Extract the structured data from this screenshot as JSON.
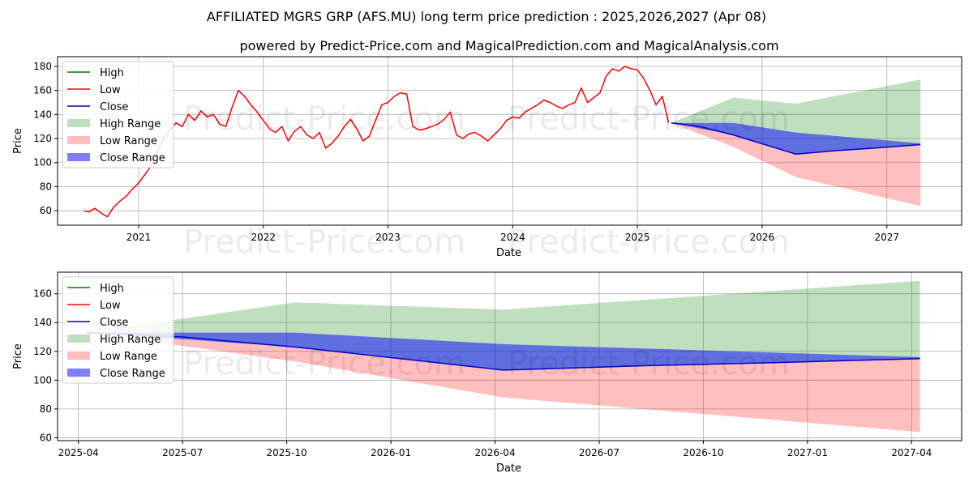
{
  "chart_data": [
    {
      "type": "line",
      "title": "AFFILIATED MGRS GRP (AFS.MU) long term price prediction : 2025,2026,2027 (Apr 08)",
      "subtitle": "powered by Predict-Price.com and MagicalPrediction.com and MagicalAnalysis.com",
      "xlabel": "Date",
      "ylabel": "Price",
      "xlim": [
        2020.35,
        2027.6
      ],
      "ylim": [
        48,
        188
      ],
      "x_ticks": [
        2021,
        2022,
        2023,
        2024,
        2025,
        2026,
        2027
      ],
      "x_tick_labels": [
        "2021",
        "2022",
        "2023",
        "2024",
        "2025",
        "2026",
        "2027"
      ],
      "y_ticks": [
        60,
        80,
        100,
        120,
        140,
        160,
        180
      ],
      "y_tick_labels": [
        "60",
        "80",
        "100",
        "120",
        "140",
        "160",
        "180"
      ],
      "grid": true,
      "legend_position": "top-left",
      "watermark": "Predict-Price.com",
      "series": [
        {
          "name": "Low",
          "color": "#ff0000",
          "x": [
            2020.56,
            2020.6,
            2020.65,
            2020.7,
            2020.75,
            2020.8,
            2020.85,
            2020.9,
            2020.95,
            2021.0,
            2021.05,
            2021.1,
            2021.15,
            2021.2,
            2021.25,
            2021.3,
            2021.35,
            2021.4,
            2021.45,
            2021.5,
            2021.55,
            2021.6,
            2021.65,
            2021.7,
            2021.75,
            2021.8,
            2021.85,
            2021.9,
            2021.95,
            2022.0,
            2022.05,
            2022.1,
            2022.15,
            2022.2,
            2022.25,
            2022.3,
            2022.35,
            2022.4,
            2022.45,
            2022.5,
            2022.55,
            2022.6,
            2022.65,
            2022.7,
            2022.75,
            2022.8,
            2022.85,
            2022.9,
            2022.95,
            2023.0,
            2023.05,
            2023.1,
            2023.15,
            2023.2,
            2023.25,
            2023.3,
            2023.35,
            2023.4,
            2023.45,
            2023.5,
            2023.55,
            2023.6,
            2023.65,
            2023.7,
            2023.75,
            2023.8,
            2023.85,
            2023.9,
            2023.95,
            2024.0,
            2024.05,
            2024.1,
            2024.15,
            2024.2,
            2024.25,
            2024.3,
            2024.35,
            2024.4,
            2024.45,
            2024.5,
            2024.55,
            2024.6,
            2024.65,
            2024.7,
            2024.75,
            2024.8,
            2024.85,
            2024.9,
            2024.95,
            2025.0,
            2025.05,
            2025.1,
            2025.15,
            2025.2,
            2025.25
          ],
          "values": [
            60,
            59,
            62,
            58,
            55,
            63,
            68,
            72,
            78,
            83,
            90,
            97,
            110,
            120,
            127,
            133,
            130,
            140,
            135,
            143,
            138,
            140,
            132,
            130,
            146,
            160,
            155,
            148,
            142,
            135,
            128,
            125,
            130,
            118,
            126,
            130,
            123,
            120,
            125,
            112,
            116,
            122,
            130,
            136,
            128,
            118,
            122,
            135,
            148,
            150,
            155,
            158,
            157,
            130,
            127,
            128,
            130,
            132,
            136,
            142,
            123,
            120,
            124,
            125,
            122,
            118,
            123,
            128,
            135,
            138,
            137,
            142,
            145,
            148,
            152,
            150,
            147,
            145,
            148,
            150,
            162,
            150,
            154,
            158,
            172,
            178,
            176,
            180,
            178,
            177,
            170,
            160,
            148,
            155,
            133
          ]
        },
        {
          "name": "High",
          "color": "#008000",
          "x": [],
          "values": []
        },
        {
          "name": "Close",
          "color": "#0000cc",
          "x": [
            2025.27,
            2025.5,
            2025.77,
            2026.27,
            2026.6,
            2026.9,
            2027.27
          ],
          "values": [
            133,
            130,
            123,
            107,
            110,
            112,
            115
          ]
        }
      ],
      "bands": [
        {
          "name": "High Range",
          "color": "#008000",
          "alpha": 0.25,
          "x": [
            2025.27,
            2025.77,
            2026.27,
            2027.27
          ],
          "upper": [
            133,
            154,
            149,
            169
          ],
          "lower": [
            133,
            123,
            107,
            115
          ]
        },
        {
          "name": "Low Range",
          "color": "#ff0000",
          "alpha": 0.25,
          "x": [
            2025.27,
            2025.77,
            2026.27,
            2027.27
          ],
          "upper": [
            133,
            123,
            107,
            115
          ],
          "lower": [
            133,
            113,
            88,
            64
          ]
        },
        {
          "name": "Close Range",
          "color": "#0000ff",
          "alpha": 0.5,
          "x": [
            2025.27,
            2025.77,
            2026.27,
            2027.27
          ],
          "upper": [
            133,
            133,
            125,
            116
          ],
          "lower": [
            133,
            123,
            107,
            115
          ]
        }
      ],
      "legend": [
        "High",
        "Low",
        "Close",
        "High Range",
        "Low Range",
        "Close Range"
      ]
    },
    {
      "type": "line",
      "title": "",
      "xlabel": "Date",
      "ylabel": "Price",
      "xlim": [
        2025.2,
        2027.37
      ],
      "ylim": [
        58,
        175
      ],
      "x_ticks": [
        2025.25,
        2025.5,
        2025.75,
        2026.0,
        2026.25,
        2026.5,
        2026.75,
        2027.0,
        2027.25
      ],
      "x_tick_labels": [
        "2025-04",
        "2025-07",
        "2025-10",
        "2026-01",
        "2026-04",
        "2026-07",
        "2026-10",
        "2027-01",
        "2027-04"
      ],
      "y_ticks": [
        60,
        80,
        100,
        120,
        140,
        160
      ],
      "y_tick_labels": [
        "60",
        "80",
        "100",
        "120",
        "140",
        "160"
      ],
      "grid": true,
      "legend_position": "top-left",
      "watermark": "Predict-Price.com",
      "series": [
        {
          "name": "High",
          "color": "#008000",
          "x": [],
          "values": []
        },
        {
          "name": "Low",
          "color": "#ff0000",
          "x": [],
          "values": []
        },
        {
          "name": "Close",
          "color": "#0000cc",
          "x": [
            2025.27,
            2025.5,
            2025.77,
            2026.27,
            2026.6,
            2026.9,
            2027.27
          ],
          "values": [
            133,
            130,
            123,
            107,
            110,
            112,
            115
          ]
        }
      ],
      "bands": [
        {
          "name": "High Range",
          "color": "#008000",
          "alpha": 0.25,
          "x": [
            2025.27,
            2025.77,
            2026.27,
            2027.27
          ],
          "upper": [
            133,
            154,
            149,
            169
          ],
          "lower": [
            133,
            123,
            107,
            115
          ]
        },
        {
          "name": "Low Range",
          "color": "#ff0000",
          "alpha": 0.25,
          "x": [
            2025.27,
            2025.77,
            2026.27,
            2027.27
          ],
          "upper": [
            133,
            123,
            107,
            115
          ],
          "lower": [
            133,
            113,
            88,
            64
          ]
        },
        {
          "name": "Close Range",
          "color": "#0000ff",
          "alpha": 0.5,
          "x": [
            2025.27,
            2025.77,
            2026.27,
            2027.27
          ],
          "upper": [
            133,
            133,
            125,
            116
          ],
          "lower": [
            133,
            123,
            107,
            115
          ]
        }
      ],
      "legend": [
        "High",
        "Low",
        "Close",
        "High Range",
        "Low Range",
        "Close Range"
      ]
    }
  ]
}
